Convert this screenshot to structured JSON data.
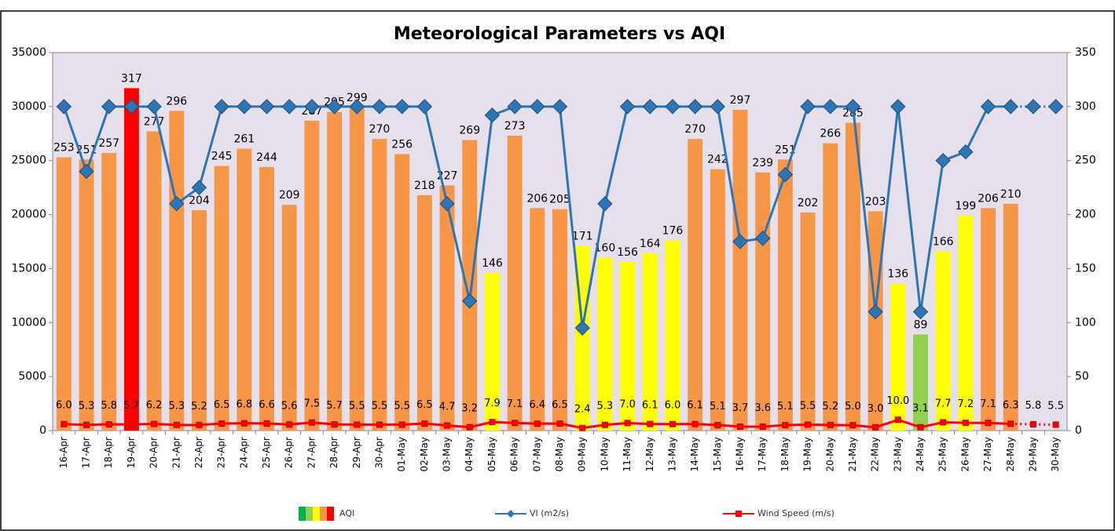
{
  "chart_data": {
    "type": "combo",
    "title": "Meteorological Parameters vs AQI",
    "categories": [
      "16-Apr",
      "17-Apr",
      "18-Apr",
      "19-Apr",
      "20-Apr",
      "21-Apr",
      "22-Apr",
      "23-Apr",
      "24-Apr",
      "25-Apr",
      "26-Apr",
      "27-Apr",
      "28-Apr",
      "29-Apr",
      "30-Apr",
      "01-May",
      "02-May",
      "03-May",
      "04-May",
      "05-May",
      "06-May",
      "07-May",
      "08-May",
      "09-May",
      "10-May",
      "11-May",
      "12-May",
      "13-May",
      "14-May",
      "15-May",
      "16-May",
      "17-May",
      "18-May",
      "19-May",
      "20-May",
      "21-May",
      "22-May",
      "23-May",
      "24-May",
      "25-May",
      "26-May",
      "27-May",
      "28-May",
      "29-May",
      "30-May"
    ],
    "ylim": [
      0,
      35000
    ],
    "yticks": [
      0,
      5000,
      10000,
      15000,
      20000,
      25000,
      30000,
      35000
    ],
    "y2lim": [
      0,
      350
    ],
    "y2ticks": [
      0,
      50,
      100,
      150,
      200,
      250,
      300,
      350
    ],
    "plot_background": "#e6e0ec",
    "series": [
      {
        "name": "AQI",
        "type": "bar",
        "axis": "y2",
        "values": [
          253,
          251,
          257,
          317,
          277,
          296,
          204,
          245,
          261,
          244,
          209,
          287,
          295,
          299,
          270,
          256,
          218,
          227,
          269,
          146,
          273,
          206,
          205,
          171,
          160,
          156,
          164,
          176,
          270,
          242,
          297,
          239,
          251,
          202,
          266,
          285,
          203,
          136,
          89,
          166,
          199,
          206,
          210,
          null,
          null
        ],
        "colors": [
          "#f79646",
          "#f79646",
          "#f79646",
          "#ff0000",
          "#f79646",
          "#f79646",
          "#f79646",
          "#f79646",
          "#f79646",
          "#f79646",
          "#f79646",
          "#f79646",
          "#f79646",
          "#f79646",
          "#f79646",
          "#f79646",
          "#f79646",
          "#f79646",
          "#f79646",
          "#ffff00",
          "#f79646",
          "#f79646",
          "#f79646",
          "#ffff00",
          "#ffff00",
          "#ffff00",
          "#ffff00",
          "#ffff00",
          "#f79646",
          "#f79646",
          "#f79646",
          "#f79646",
          "#f79646",
          "#f79646",
          "#f79646",
          "#f79646",
          "#f79646",
          "#ffff00",
          "#92d050",
          "#ffff00",
          "#ffff00",
          "#f79646",
          "#f79646",
          "#f79646",
          "#f79646"
        ],
        "legend_colors": [
          "#00b050",
          "#92d050",
          "#ffff00",
          "#f79646",
          "#ff0000"
        ]
      },
      {
        "name": "VI (m2/s)",
        "type": "line",
        "axis": "y",
        "color": "#2e75b6",
        "marker": "diamond",
        "dotted_from": 43,
        "values": [
          30000,
          24000,
          30000,
          30000,
          30000,
          21000,
          22500,
          30000,
          30000,
          30000,
          30000,
          30000,
          30000,
          30000,
          30000,
          30000,
          30000,
          21000,
          12000,
          29200,
          30000,
          30000,
          30000,
          9500,
          21000,
          30000,
          30000,
          30000,
          30000,
          30000,
          17500,
          17800,
          23700,
          30000,
          30000,
          30000,
          11000,
          30000,
          11000,
          25000,
          25800,
          30000,
          30000,
          30000,
          30000
        ]
      },
      {
        "name": "Wind Speed (m/s)",
        "type": "line",
        "axis": "y2",
        "color": "#ff0000",
        "marker": "square",
        "dotted_from": 43,
        "values": [
          6.0,
          5.3,
          5.8,
          5.7,
          6.2,
          5.3,
          5.2,
          6.5,
          6.8,
          6.6,
          5.6,
          7.5,
          5.7,
          5.5,
          5.5,
          5.5,
          6.5,
          4.7,
          3.2,
          7.9,
          7.1,
          6.4,
          6.5,
          2.4,
          5.3,
          7.0,
          6.1,
          6.0,
          6.1,
          5.1,
          3.7,
          3.6,
          5.1,
          5.5,
          5.2,
          5.0,
          3.0,
          10.0,
          3.1,
          7.7,
          7.2,
          7.1,
          6.3,
          5.8,
          5.5
        ],
        "value_labels": [
          "6.0",
          "5.3",
          "5.8",
          "5.7",
          "6.2",
          "5.3",
          "5.2",
          "6.5",
          "6.8",
          "6.6",
          "5.6",
          "7.5",
          "5.7",
          "5.5",
          "5.5",
          "5.5",
          "6.5",
          "4.7",
          "3.2",
          "7.9",
          "7.1",
          "6.4",
          "6.5",
          "2.4",
          "5.3",
          "7.0",
          "6.1",
          "6.0",
          "6.1",
          "5.1",
          "3.7",
          "3.6",
          "5.1",
          "5.5",
          "5.2",
          "5.0",
          "3.0",
          "10.0",
          "3.1",
          "7.7",
          "7.2",
          "7.1",
          "6.3",
          "5.8",
          "5.5"
        ]
      }
    ]
  }
}
